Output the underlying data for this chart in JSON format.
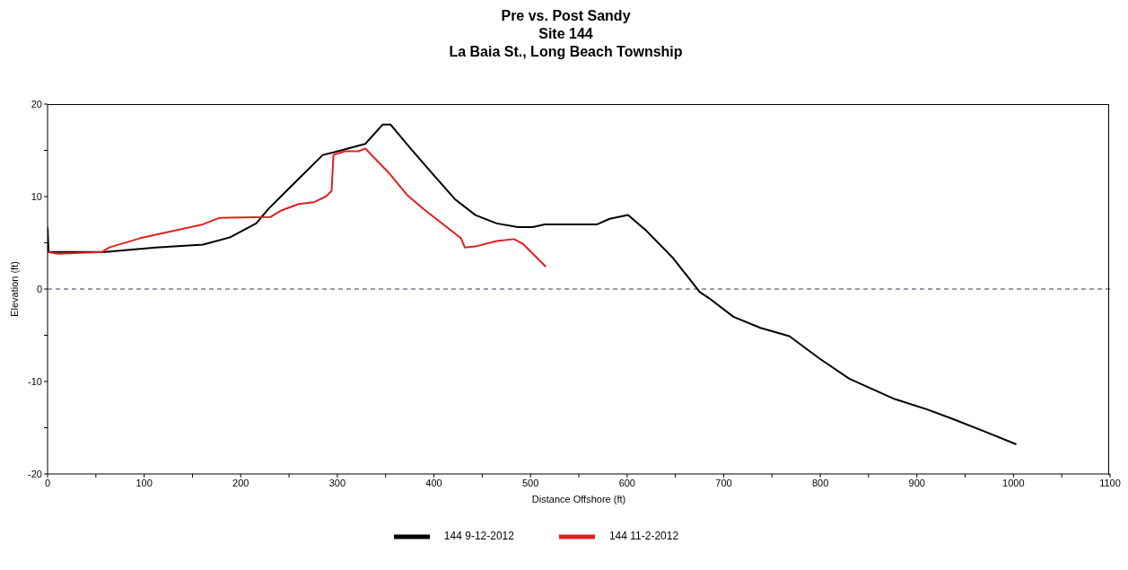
{
  "chart_data": {
    "type": "line",
    "title": "Pre vs. Post Sandy",
    "subtitle": "Site 144\nLa Baia St., Long Beach Township",
    "xlabel": "Distance Offshore (ft)",
    "ylabel": "Elevation (ft)",
    "xlim": [
      0,
      1100
    ],
    "xticks": [
      0,
      {
        "value": 50,
        "label": null
      },
      100,
      {
        "value": 150,
        "label": null
      },
      200,
      {
        "value": 250,
        "label": null
      },
      300,
      {
        "value": 350,
        "label": null
      },
      400,
      {
        "value": 450,
        "label": null
      },
      500,
      {
        "value": 550,
        "label": null
      },
      600,
      {
        "value": 650,
        "label": null
      },
      700,
      {
        "value": 750,
        "label": null
      },
      800,
      {
        "value": 850,
        "label": null
      },
      900,
      {
        "value": 950,
        "label": null
      },
      1000,
      {
        "value": 1050,
        "label": null
      },
      1100
    ],
    "ylim": [
      -20,
      20
    ],
    "yticks": [
      -20,
      {
        "value": -15,
        "label": null
      },
      -10,
      {
        "value": -5,
        "label": null
      },
      0,
      {
        "value": 5,
        "label": null
      },
      10,
      {
        "value": 15,
        "label": null
      },
      20
    ],
    "grid": false,
    "legend": "bottom",
    "marker": "none",
    "line_style": "solid",
    "ref_lines": [
      {
        "axis": "y",
        "value": 0,
        "color": "#333366",
        "line_style": "dashed"
      }
    ],
    "series": [
      {
        "name": "144 9-12-2012",
        "color": "#000000",
        "x": [
          0,
          1,
          28,
          59,
          112,
          161,
          189,
          216,
          229,
          251,
          285,
          297,
          329,
          347,
          355,
          375,
          400,
          422,
          443,
          465,
          487,
          502,
          515,
          569,
          582,
          601,
          620,
          648,
          675,
          685,
          710,
          738,
          768,
          799,
          830,
          877,
          910,
          936,
          970,
          1003
        ],
        "values": [
          6.7,
          4.0,
          4.0,
          4.0,
          4.5,
          4.8,
          5.6,
          7.1,
          8.7,
          11.0,
          14.5,
          14.8,
          15.7,
          17.8,
          17.8,
          15.3,
          12.3,
          9.7,
          8.0,
          7.1,
          6.7,
          6.7,
          7.0,
          7.0,
          7.6,
          8.0,
          6.3,
          3.3,
          -0.3,
          -1.0,
          -3.0,
          -4.2,
          -5.1,
          -7.5,
          -9.7,
          -11.9,
          -13.0,
          -14.0,
          -15.4,
          -16.8
        ]
      },
      {
        "name": "144 11-2-2012",
        "color": "#e02020",
        "x": [
          0,
          11,
          56,
          64,
          96,
          161,
          178,
          231,
          242,
          260,
          276,
          288,
          294,
          296,
          308,
          322,
          329,
          353,
          372,
          390,
          428,
          432,
          443,
          465,
          483,
          492,
          516
        ],
        "values": [
          4.0,
          3.8,
          4.0,
          4.5,
          5.5,
          7.0,
          7.7,
          7.8,
          8.5,
          9.2,
          9.4,
          10.0,
          10.6,
          14.5,
          14.9,
          14.9,
          15.2,
          12.6,
          10.2,
          8.6,
          5.5,
          4.5,
          4.6,
          5.2,
          5.4,
          4.9,
          2.4
        ]
      }
    ]
  }
}
